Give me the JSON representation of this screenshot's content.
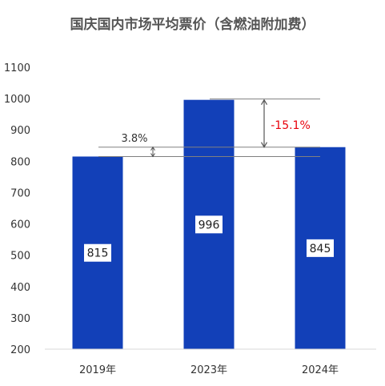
{
  "chart_data": {
    "type": "bar",
    "title": "国庆国内市场平均票价（含燃油附加费）",
    "categories": [
      "2019年",
      "2023年",
      "2024年"
    ],
    "values": [
      815,
      996,
      845
    ],
    "ylim": [
      200,
      1100
    ],
    "yticks": [
      "200",
      "300",
      "400",
      "500",
      "600",
      "700",
      "800",
      "900",
      "1000",
      "1100"
    ],
    "grid": false,
    "bar_color": "#1240B8",
    "annotations": [
      {
        "text": "3.8%",
        "from": "2019年",
        "to": "2024年",
        "color": "#333333"
      },
      {
        "text": "-15.1%",
        "from": "2023年",
        "to": "2024年",
        "color": "#E8000B"
      }
    ]
  }
}
